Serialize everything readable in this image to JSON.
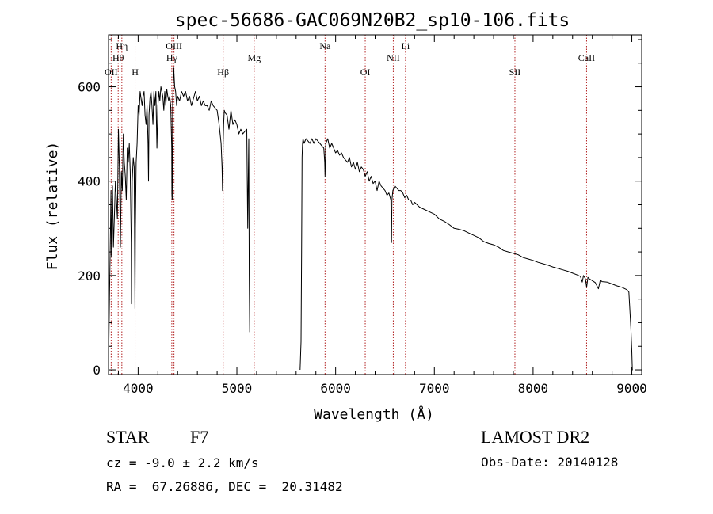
{
  "chart_data": {
    "type": "line",
    "title": "spec-56686-GAC069N20B2_sp10-106.fits",
    "xlabel": "Wavelength (Å)",
    "ylabel": "Flux (relative)",
    "xlim": [
      3700,
      9100
    ],
    "ylim": [
      -10,
      710
    ],
    "x_ticks": [
      4000,
      5000,
      6000,
      7000,
      8000,
      9000
    ],
    "y_ticks": [
      0,
      200,
      400,
      600
    ],
    "grid": false,
    "colors": {
      "spectrum": "#000000",
      "lines": "#b22222",
      "axes": "#000000"
    },
    "spectral_lines": [
      {
        "label": "OII",
        "wavelength": 3727,
        "row": 3
      },
      {
        "label": "Hθ",
        "wavelength": 3798,
        "row": 2
      },
      {
        "label": "Hη",
        "wavelength": 3835,
        "row": 1
      },
      {
        "label": "H",
        "wavelength": 3969,
        "row": 3
      },
      {
        "label": "Hγ",
        "wavelength": 4341,
        "row": 2
      },
      {
        "label": "OIII",
        "wavelength": 4363,
        "row": 1
      },
      {
        "label": "Hβ",
        "wavelength": 4861,
        "row": 3
      },
      {
        "label": "Mg",
        "wavelength": 5175,
        "row": 2
      },
      {
        "label": "Na",
        "wavelength": 5893,
        "row": 1
      },
      {
        "label": "OI",
        "wavelength": 6300,
        "row": 3
      },
      {
        "label": "NII",
        "wavelength": 6584,
        "row": 2
      },
      {
        "label": "Li",
        "wavelength": 6708,
        "row": 1
      },
      {
        "label": "SII",
        "wavelength": 7816,
        "row": 3
      },
      {
        "label": "CaII",
        "wavelength": 8542,
        "row": 2
      }
    ],
    "series": [
      {
        "segments": [
          {
            "x": [
              3700,
              3710,
              3720,
              3725,
              3730,
              3740,
              3750,
              3760,
              3770,
              3780,
              3790,
              3800,
              3810,
              3820,
              3830,
              3840,
              3850,
              3860,
              3870,
              3880,
              3890,
              3900,
              3910,
              3920,
              3930,
              3933,
              3937,
              3940,
              3950,
              3960,
              3968,
              3972,
              3980,
              3990,
              4000,
              4010,
              4020,
              4030,
              4040,
              4050,
              4060,
              4070,
              4080,
              4090,
              4100,
              4105,
              4110,
              4120,
              4130,
              4140,
              4150,
              4160,
              4170,
              4180,
              4190,
              4200,
              4210,
              4220,
              4230,
              4240,
              4250,
              4260,
              4270,
              4280,
              4290,
              4300,
              4310,
              4320,
              4330,
              4340,
              4342,
              4345,
              4350,
              4360,
              4370,
              4380,
              4390,
              4400,
              4420,
              4440,
              4460,
              4480,
              4500,
              4520,
              4540,
              4560,
              4580,
              4600,
              4620,
              4640,
              4660,
              4680,
              4700,
              4720,
              4740,
              4760,
              4780,
              4800,
              4820,
              4840,
              4850,
              4855,
              4861,
              4866,
              4872,
              4880,
              4900,
              4920,
              4940,
              4960,
              4980,
              5000,
              5020,
              5040,
              5060,
              5080,
              5100,
              5110,
              5120,
              5125,
              5130
            ],
            "y": [
              0,
              150,
              300,
              380,
              240,
              390,
              260,
              330,
              400,
              360,
              320,
              510,
              430,
              260,
              420,
              380,
              500,
              440,
              410,
              360,
              470,
              440,
              480,
              420,
              270,
              140,
              300,
              400,
              450,
              430,
              130,
              300,
              440,
              480,
              560,
              540,
              590,
              575,
              560,
              580,
              590,
              540,
              520,
              560,
              480,
              400,
              540,
              575,
              590,
              560,
              520,
              590,
              560,
              590,
              470,
              560,
              590,
              570,
              600,
              590,
              580,
              550,
              590,
              560,
              595,
              580,
              570,
              580,
              560,
              470,
              370,
              360,
              570,
              640,
              600,
              590,
              560,
              580,
              570,
              590,
              580,
              590,
              570,
              580,
              560,
              575,
              590,
              570,
              580,
              560,
              570,
              560,
              560,
              550,
              570,
              560,
              555,
              550,
              520,
              480,
              430,
              380,
              480,
              520,
              550,
              545,
              540,
              510,
              550,
              520,
              530,
              520,
              500,
              510,
              500,
              505,
              510,
              300,
              490,
              200,
              80
            ]
          },
          {
            "x": [
              5640,
              5650,
              5655,
              5660,
              5665,
              5670,
              5680,
              5700,
              5720,
              5740,
              5760,
              5780,
              5800,
              5820,
              5840,
              5860,
              5880,
              5890,
              5893,
              5896,
              5900,
              5920,
              5940,
              5960,
              5980,
              6000,
              6020,
              6040,
              6060,
              6080,
              6100,
              6120,
              6140,
              6160,
              6180,
              6200,
              6220,
              6240,
              6260,
              6280,
              6300,
              6320,
              6340,
              6360,
              6380,
              6400,
              6420,
              6440,
              6460,
              6480,
              6500,
              6520,
              6540,
              6560,
              6563,
              6566,
              6570,
              6580,
              6600,
              6620,
              6640,
              6660,
              6680,
              6700,
              6720,
              6740,
              6760,
              6780,
              6800,
              6850,
              6900,
              6950,
              7000,
              7050,
              7100,
              7150,
              7200,
              7250,
              7300,
              7350,
              7400,
              7450,
              7500,
              7550,
              7600,
              7650,
              7700,
              7750,
              7800,
              7850,
              7900,
              7950,
              8000,
              8050,
              8100,
              8150,
              8200,
              8250,
              8300,
              8350,
              8400,
              8450,
              8480,
              8498,
              8510,
              8530,
              8542,
              8555,
              8570,
              8600,
              8630,
              8662,
              8680,
              8700,
              8750,
              8800,
              8850,
              8900,
              8950,
              8970,
              8990,
              9000,
              9005,
              9010
            ],
            "y": [
              0,
              60,
              250,
              450,
              480,
              490,
              480,
              490,
              485,
              480,
              490,
              480,
              490,
              485,
              480,
              475,
              470,
              440,
              410,
              440,
              480,
              490,
              470,
              480,
              470,
              460,
              465,
              455,
              460,
              450,
              445,
              440,
              450,
              430,
              440,
              425,
              440,
              420,
              430,
              425,
              410,
              420,
              400,
              410,
              395,
              400,
              380,
              400,
              390,
              385,
              380,
              370,
              375,
              360,
              290,
              270,
              360,
              380,
              390,
              385,
              380,
              380,
              375,
              365,
              370,
              360,
              360,
              350,
              355,
              345,
              340,
              335,
              330,
              320,
              315,
              308,
              300,
              298,
              295,
              290,
              285,
              280,
              272,
              268,
              265,
              260,
              253,
              250,
              247,
              244,
              238,
              235,
              232,
              228,
              225,
              222,
              218,
              215,
              212,
              209,
              205,
              201,
              198,
              186,
              200,
              193,
              175,
              196,
              193,
              189,
              185,
              172,
              190,
              187,
              186,
              182,
              178,
              175,
              170,
              165,
              90,
              40,
              0,
              0
            ]
          }
        ]
      }
    ],
    "footer": {
      "object_class": "STAR",
      "subclass": "F7",
      "cz": "cz = -9.0 ± 2.2 km/s",
      "radec": "RA =  67.26886, DEC =  20.31482",
      "survey": "LAMOST DR2",
      "obs_date": "Obs-Date: 20140128"
    }
  }
}
